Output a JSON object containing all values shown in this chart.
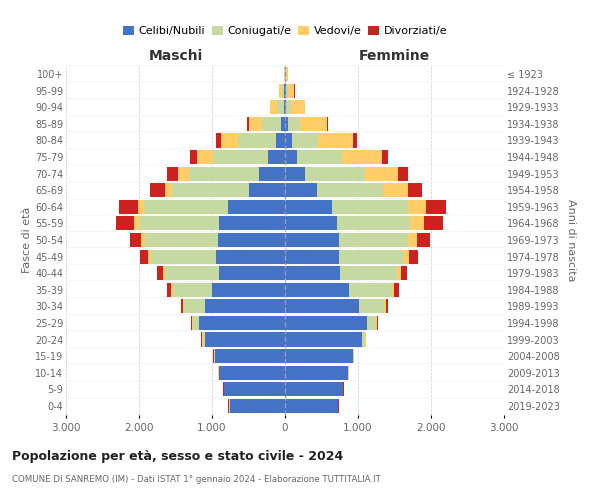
{
  "age_groups": [
    "0-4",
    "5-9",
    "10-14",
    "15-19",
    "20-24",
    "25-29",
    "30-34",
    "35-39",
    "40-44",
    "45-49",
    "50-54",
    "55-59",
    "60-64",
    "65-69",
    "70-74",
    "75-79",
    "80-84",
    "85-89",
    "90-94",
    "95-99",
    "100+"
  ],
  "birth_years": [
    "2019-2023",
    "2014-2018",
    "2009-2013",
    "2004-2008",
    "1999-2003",
    "1994-1998",
    "1989-1993",
    "1984-1988",
    "1979-1983",
    "1974-1978",
    "1969-1973",
    "1964-1968",
    "1959-1963",
    "1954-1958",
    "1949-1953",
    "1944-1948",
    "1939-1943",
    "1934-1938",
    "1929-1933",
    "1924-1928",
    "≤ 1923"
  ],
  "males": {
    "celibi": [
      760,
      830,
      900,
      960,
      1100,
      1180,
      1100,
      1000,
      900,
      940,
      920,
      900,
      780,
      500,
      360,
      230,
      130,
      60,
      20,
      12,
      3
    ],
    "coniugati": [
      8,
      8,
      8,
      15,
      30,
      80,
      280,
      540,
      740,
      900,
      1000,
      1100,
      1150,
      1050,
      950,
      760,
      510,
      250,
      85,
      30,
      6
    ],
    "vedovi": [
      3,
      3,
      3,
      3,
      8,
      8,
      15,
      22,
      30,
      40,
      50,
      65,
      90,
      100,
      150,
      210,
      240,
      180,
      95,
      38,
      10
    ],
    "divorziati": [
      3,
      3,
      3,
      3,
      8,
      15,
      30,
      55,
      80,
      110,
      160,
      250,
      250,
      200,
      150,
      100,
      60,
      30,
      10,
      4,
      1
    ]
  },
  "females": {
    "nubili": [
      720,
      790,
      860,
      930,
      1050,
      1130,
      1020,
      870,
      760,
      740,
      740,
      710,
      640,
      440,
      270,
      160,
      90,
      45,
      18,
      10,
      4
    ],
    "coniugate": [
      8,
      8,
      8,
      15,
      45,
      110,
      340,
      590,
      770,
      880,
      940,
      1000,
      1040,
      900,
      820,
      620,
      360,
      165,
      60,
      25,
      6
    ],
    "vedove": [
      3,
      3,
      3,
      3,
      8,
      15,
      22,
      35,
      55,
      80,
      130,
      190,
      250,
      350,
      460,
      550,
      480,
      360,
      190,
      95,
      30
    ],
    "divorziate": [
      3,
      3,
      3,
      3,
      8,
      15,
      35,
      70,
      85,
      120,
      170,
      260,
      280,
      190,
      130,
      85,
      50,
      25,
      10,
      4,
      1
    ]
  },
  "colors": {
    "celibi": "#4472C4",
    "coniugati": "#C5D9A0",
    "vedovi": "#FFCC66",
    "divorziati": "#CC2222"
  },
  "xlim": 3000,
  "title": "Popolazione per età, sesso e stato civile - 2024",
  "subtitle": "COMUNE DI SANREMO (IM) - Dati ISTAT 1° gennaio 2024 - Elaborazione TUTTITALIA.IT",
  "ylabel_left": "Fasce di età",
  "ylabel_right": "Anni di nascita",
  "xlabel_left": "Maschi",
  "xlabel_right": "Femmine",
  "background_color": "#ffffff",
  "grid_color": "#cccccc",
  "tick_values": [
    -3000,
    -2000,
    -1000,
    0,
    1000,
    2000,
    3000
  ],
  "tick_labels": [
    "3.000",
    "2.000",
    "1.000",
    "0",
    "1.000",
    "2.000",
    "3.000"
  ]
}
